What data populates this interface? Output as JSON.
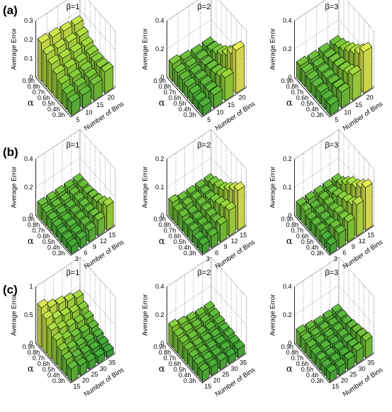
{
  "figure": {
    "rows": [
      {
        "label": "(a)",
        "charts": [
          {
            "title": "β=1",
            "ylabel": "Average Error",
            "xlabel": "Number of Bins",
            "alpha_label": "α",
            "zlim": [
              0,
              0.4
            ],
            "zticks": [
              "0",
              "0.1",
              "0.2",
              "0.3"
            ],
            "bin_ticks": [
              "5",
              "10",
              "15",
              "20"
            ],
            "alpha_ticks": [
              "0.9h",
              "0.8h",
              "0.7h",
              "0.6h",
              "0.5h",
              "0.4h",
              "0.3h"
            ],
            "chart_data": {
              "type": "bar3d",
              "alpha": [
                "0.9h",
                "0.8h",
                "0.7h",
                "0.6h",
                "0.5h",
                "0.4h",
                "0.3h"
              ],
              "bins": [
                5,
                10,
                15,
                20
              ],
              "values": [
                [
                  0.27,
                  0.26,
                  0.25,
                  0.24
                ],
                [
                  0.23,
                  0.22,
                  0.21,
                  0.2
                ],
                [
                  0.2,
                  0.19,
                  0.18,
                  0.17
                ],
                [
                  0.17,
                  0.16,
                  0.15,
                  0.15
                ],
                [
                  0.14,
                  0.13,
                  0.13,
                  0.14
                ],
                [
                  0.11,
                  0.11,
                  0.12,
                  0.14
                ],
                [
                  0.09,
                  0.09,
                  0.11,
                  0.15
                ]
              ]
            }
          },
          {
            "title": "β=2",
            "ylabel": "Average Error",
            "xlabel": "Number of Bins",
            "alpha_label": "α",
            "zlim": [
              0,
              0.4
            ],
            "zticks": [
              "0",
              "0.2",
              "0.4"
            ],
            "bin_ticks": [
              "5",
              "10",
              "15",
              "20"
            ],
            "alpha_ticks": [
              "0.9h",
              "0.8h",
              "0.7h",
              "0.6h",
              "0.5h",
              "0.4h",
              "0.3h"
            ],
            "chart_data": {
              "type": "bar3d",
              "alpha": [
                "0.9h",
                "0.8h",
                "0.7h",
                "0.6h",
                "0.5h",
                "0.4h",
                "0.3h"
              ],
              "bins": [
                5,
                10,
                15,
                20
              ],
              "values": [
                [
                  0.12,
                  0.1,
                  0.09,
                  0.09
                ],
                [
                  0.1,
                  0.09,
                  0.09,
                  0.1
                ],
                [
                  0.09,
                  0.08,
                  0.09,
                  0.12
                ],
                [
                  0.08,
                  0.08,
                  0.1,
                  0.15
                ],
                [
                  0.07,
                  0.08,
                  0.11,
                  0.19
                ],
                [
                  0.06,
                  0.08,
                  0.13,
                  0.24
                ],
                [
                  0.06,
                  0.09,
                  0.16,
                  0.3
                ]
              ]
            }
          },
          {
            "title": "β=3",
            "ylabel": "Average Error",
            "xlabel": "Number of Bins",
            "alpha_label": "α",
            "zlim": [
              0,
              0.4
            ],
            "zticks": [
              "0",
              "0.2",
              "0.4"
            ],
            "bin_ticks": [
              "5",
              "10",
              "15",
              "20"
            ],
            "alpha_ticks": [
              "0.9h",
              "0.8h",
              "0.7h",
              "0.6h",
              "0.5h",
              "0.4h",
              "0.3h"
            ],
            "chart_data": {
              "type": "bar3d",
              "alpha": [
                "0.9h",
                "0.8h",
                "0.7h",
                "0.6h",
                "0.5h",
                "0.4h",
                "0.3h"
              ],
              "bins": [
                5,
                10,
                15,
                20
              ],
              "values": [
                [
                  0.11,
                  0.1,
                  0.1,
                  0.1
                ],
                [
                  0.1,
                  0.09,
                  0.1,
                  0.12
                ],
                [
                  0.09,
                  0.09,
                  0.11,
                  0.14
                ],
                [
                  0.08,
                  0.09,
                  0.12,
                  0.17
                ],
                [
                  0.08,
                  0.09,
                  0.13,
                  0.2
                ],
                [
                  0.07,
                  0.1,
                  0.15,
                  0.24
                ],
                [
                  0.07,
                  0.11,
                  0.18,
                  0.29
                ]
              ]
            }
          }
        ]
      },
      {
        "label": "(b)",
        "charts": [
          {
            "title": "β=1",
            "ylabel": "Average Error",
            "xlabel": "Number of Bins",
            "alpha_label": "α",
            "zlim": [
              0,
              0.4
            ],
            "zticks": [
              "0",
              "0.2",
              "0.4"
            ],
            "bin_ticks": [
              "3",
              "6",
              "9",
              "12",
              "15"
            ],
            "alpha_ticks": [
              "0.9h",
              "0.8h",
              "0.7h",
              "0.6h",
              "0.5h",
              "0.4h",
              "0.3h"
            ],
            "chart_data": {
              "type": "bar3d",
              "alpha": [
                "0.9h",
                "0.8h",
                "0.7h",
                "0.6h",
                "0.5h",
                "0.4h",
                "0.3h"
              ],
              "bins": [
                3,
                6,
                9,
                12,
                15
              ],
              "values": [
                [
                  0.1,
                  0.1,
                  0.1,
                  0.1,
                  0.1
                ],
                [
                  0.09,
                  0.09,
                  0.09,
                  0.09,
                  0.1
                ],
                [
                  0.08,
                  0.08,
                  0.08,
                  0.09,
                  0.1
                ],
                [
                  0.07,
                  0.07,
                  0.08,
                  0.09,
                  0.11
                ],
                [
                  0.06,
                  0.07,
                  0.08,
                  0.09,
                  0.12
                ],
                [
                  0.06,
                  0.06,
                  0.08,
                  0.1,
                  0.14
                ],
                [
                  0.05,
                  0.06,
                  0.08,
                  0.11,
                  0.17
                ]
              ]
            }
          },
          {
            "title": "β=2",
            "ylabel": "Average Error",
            "xlabel": "Number of Bins",
            "alpha_label": "α",
            "zlim": [
              0,
              0.2
            ],
            "zticks": [
              "0",
              "0.1",
              "0.2"
            ],
            "bin_ticks": [
              "3",
              "6",
              "9",
              "12",
              "15"
            ],
            "alpha_ticks": [
              "0.9h",
              "0.8h",
              "0.7h",
              "0.6h",
              "0.5h",
              "0.4h",
              "0.3h"
            ],
            "chart_data": {
              "type": "bar3d",
              "alpha": [
                "0.9h",
                "0.8h",
                "0.7h",
                "0.6h",
                "0.5h",
                "0.4h",
                "0.3h"
              ],
              "bins": [
                3,
                6,
                9,
                12,
                15
              ],
              "values": [
                [
                  0.06,
                  0.05,
                  0.05,
                  0.05,
                  0.05
                ],
                [
                  0.05,
                  0.05,
                  0.05,
                  0.05,
                  0.06
                ],
                [
                  0.05,
                  0.04,
                  0.05,
                  0.05,
                  0.07
                ],
                [
                  0.04,
                  0.04,
                  0.05,
                  0.06,
                  0.08
                ],
                [
                  0.04,
                  0.04,
                  0.05,
                  0.07,
                  0.1
                ],
                [
                  0.03,
                  0.04,
                  0.05,
                  0.08,
                  0.12
                ],
                [
                  0.03,
                  0.04,
                  0.06,
                  0.09,
                  0.14
                ]
              ]
            }
          },
          {
            "title": "β=3",
            "ylabel": "Average Error",
            "xlabel": "Number of Bins",
            "alpha_label": "α",
            "zlim": [
              0,
              0.2
            ],
            "zticks": [
              "0",
              "0.1",
              "0.2"
            ],
            "bin_ticks": [
              "3",
              "6",
              "9",
              "12",
              "15"
            ],
            "alpha_ticks": [
              "0.9h",
              "0.8h",
              "0.7h",
              "0.6h",
              "0.5h",
              "0.4h",
              "0.3h"
            ],
            "chart_data": {
              "type": "bar3d",
              "alpha": [
                "0.9h",
                "0.8h",
                "0.7h",
                "0.6h",
                "0.5h",
                "0.4h",
                "0.3h"
              ],
              "bins": [
                3,
                6,
                9,
                12,
                15
              ],
              "values": [
                [
                  0.05,
                  0.05,
                  0.05,
                  0.05,
                  0.05
                ],
                [
                  0.05,
                  0.04,
                  0.05,
                  0.05,
                  0.06
                ],
                [
                  0.04,
                  0.04,
                  0.05,
                  0.06,
                  0.08
                ],
                [
                  0.04,
                  0.04,
                  0.05,
                  0.07,
                  0.1
                ],
                [
                  0.04,
                  0.04,
                  0.06,
                  0.08,
                  0.11
                ],
                [
                  0.03,
                  0.05,
                  0.06,
                  0.09,
                  0.13
                ],
                [
                  0.03,
                  0.05,
                  0.07,
                  0.11,
                  0.15
                ]
              ]
            }
          }
        ]
      },
      {
        "label": "(c)",
        "charts": [
          {
            "title": "β=1",
            "ylabel": "Average Error",
            "xlabel": "Number of Bins",
            "alpha_label": "α",
            "zlim": [
              0,
              1
            ],
            "zticks": [
              "0",
              "0.5",
              "1"
            ],
            "bin_ticks": [
              "15",
              "20",
              "25",
              "30",
              "35"
            ],
            "alpha_ticks": [
              "0.9h",
              "0.8h",
              "0.7h",
              "0.6h",
              "0.5h",
              "0.4h",
              "0.3h"
            ],
            "chart_data": {
              "type": "bar3d",
              "alpha": [
                "0.9h",
                "0.8h",
                "0.7h",
                "0.6h",
                "0.5h",
                "0.4h",
                "0.3h"
              ],
              "bins": [
                15,
                20,
                25,
                30,
                35
              ],
              "values": [
                [
                  0.7,
                  0.6,
                  0.55,
                  0.5,
                  0.45
                ],
                [
                  0.6,
                  0.5,
                  0.45,
                  0.4,
                  0.35
                ],
                [
                  0.5,
                  0.42,
                  0.36,
                  0.32,
                  0.28
                ],
                [
                  0.42,
                  0.34,
                  0.28,
                  0.25,
                  0.22
                ],
                [
                  0.34,
                  0.27,
                  0.22,
                  0.19,
                  0.17
                ],
                [
                  0.28,
                  0.22,
                  0.18,
                  0.15,
                  0.13
                ],
                [
                  0.22,
                  0.17,
                  0.14,
                  0.12,
                  0.1
                ]
              ]
            }
          },
          {
            "title": "β=2",
            "ylabel": "Average Error",
            "xlabel": "Number of Bins",
            "alpha_label": "α",
            "zlim": [
              0,
              0.4
            ],
            "zticks": [
              "0",
              "0.2",
              "0.4"
            ],
            "bin_ticks": [
              "15",
              "20",
              "25",
              "30",
              "35"
            ],
            "alpha_ticks": [
              "0.9h",
              "0.8h",
              "0.7h",
              "0.6h",
              "0.5h",
              "0.4h",
              "0.3h"
            ],
            "chart_data": {
              "type": "bar3d",
              "alpha": [
                "0.9h",
                "0.8h",
                "0.7h",
                "0.6h",
                "0.5h",
                "0.4h",
                "0.3h"
              ],
              "bins": [
                15,
                20,
                25,
                30,
                35
              ],
              "values": [
                [
                  0.14,
                  0.12,
                  0.11,
                  0.1,
                  0.1
                ],
                [
                  0.12,
                  0.11,
                  0.1,
                  0.09,
                  0.09
                ],
                [
                  0.11,
                  0.1,
                  0.09,
                  0.08,
                  0.08
                ],
                [
                  0.1,
                  0.09,
                  0.08,
                  0.07,
                  0.07
                ],
                [
                  0.09,
                  0.08,
                  0.07,
                  0.06,
                  0.07
                ],
                [
                  0.08,
                  0.07,
                  0.06,
                  0.06,
                  0.06
                ],
                [
                  0.07,
                  0.06,
                  0.06,
                  0.05,
                  0.06
                ]
              ]
            }
          },
          {
            "title": "β=3",
            "ylabel": "Average Error",
            "xlabel": "Number of Bins",
            "alpha_label": "α",
            "zlim": [
              0,
              0.4
            ],
            "zticks": [
              "0",
              "0.2",
              "0.4"
            ],
            "bin_ticks": [
              "15",
              "20",
              "25",
              "30",
              "35"
            ],
            "alpha_ticks": [
              "0.9h",
              "0.8h",
              "0.7h",
              "0.6h",
              "0.5h",
              "0.4h",
              "0.3h"
            ],
            "chart_data": {
              "type": "bar3d",
              "alpha": [
                "0.9h",
                "0.8h",
                "0.7h",
                "0.6h",
                "0.5h",
                "0.4h",
                "0.3h"
              ],
              "bins": [
                15,
                20,
                25,
                30,
                35
              ],
              "values": [
                [
                  0.1,
                  0.09,
                  0.08,
                  0.08,
                  0.08
                ],
                [
                  0.09,
                  0.08,
                  0.08,
                  0.07,
                  0.08
                ],
                [
                  0.08,
                  0.07,
                  0.07,
                  0.07,
                  0.08
                ],
                [
                  0.07,
                  0.07,
                  0.06,
                  0.07,
                  0.09
                ],
                [
                  0.07,
                  0.06,
                  0.06,
                  0.07,
                  0.1
                ],
                [
                  0.06,
                  0.06,
                  0.06,
                  0.08,
                  0.11
                ],
                [
                  0.06,
                  0.06,
                  0.07,
                  0.09,
                  0.12
                ]
              ]
            }
          }
        ]
      }
    ],
    "colors": {
      "low": "#1f9b3a",
      "mid": "#9ad83b",
      "high": "#f2f25a",
      "edge": "#000000",
      "grid": "#444444"
    }
  }
}
